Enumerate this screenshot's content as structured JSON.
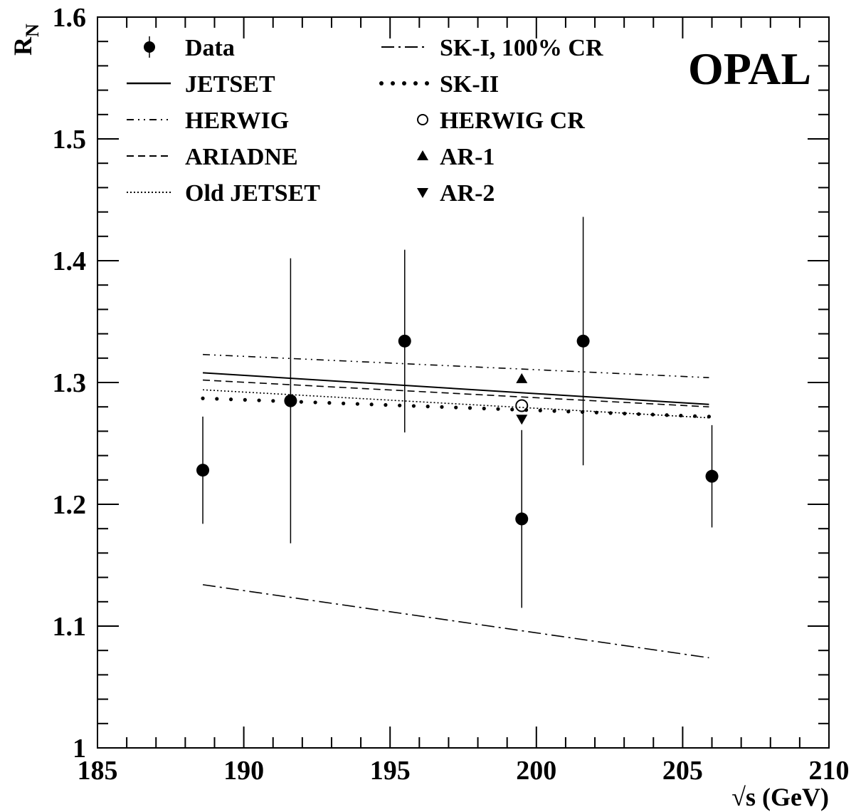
{
  "chart_data": {
    "type": "scatter",
    "label": "OPAL",
    "xlabel": "√s (GeV)",
    "ylabel": "R",
    "ylabel_sub": "N",
    "xlim": [
      185,
      210
    ],
    "ylim": [
      1.0,
      1.6
    ],
    "xticks": [
      185,
      190,
      195,
      200,
      205,
      210
    ],
    "yticks": [
      1,
      1.1,
      1.2,
      1.3,
      1.4,
      1.5,
      1.6
    ],
    "ytick_labels": [
      "1",
      "1.1",
      "1.2",
      "1.3",
      "1.4",
      "1.5",
      "1.6"
    ],
    "legend_position": "top-left",
    "data": {
      "name": "Data",
      "points": [
        {
          "x": 188.6,
          "y": 1.228,
          "err": 0.044
        },
        {
          "x": 191.6,
          "y": 1.285,
          "err": 0.117
        },
        {
          "x": 195.5,
          "y": 1.334,
          "err": 0.075
        },
        {
          "x": 199.5,
          "y": 1.188,
          "err": 0.073
        },
        {
          "x": 201.6,
          "y": 1.334,
          "err": 0.102
        },
        {
          "x": 206.0,
          "y": 1.223,
          "err": 0.042
        }
      ]
    },
    "series": [
      {
        "name": "JETSET",
        "style": "solid",
        "x": [
          188.6,
          205.9
        ],
        "y": [
          1.308,
          1.282
        ]
      },
      {
        "name": "HERWIG",
        "style": "dashdotdot",
        "x": [
          188.6,
          205.9
        ],
        "y": [
          1.323,
          1.304
        ]
      },
      {
        "name": "ARIADNE",
        "style": "dashed",
        "x": [
          188.6,
          205.9
        ],
        "y": [
          1.302,
          1.28
        ]
      },
      {
        "name": "Old JETSET",
        "style": "dotted",
        "x": [
          188.6,
          205.9
        ],
        "y": [
          1.294,
          1.271
        ]
      },
      {
        "name": "SK-I, 100% CR",
        "style": "dashdot",
        "x": [
          188.6,
          205.9
        ],
        "y": [
          1.134,
          1.074
        ]
      },
      {
        "name": "SK-II",
        "style": "bigdots",
        "x": [
          188.6,
          205.9
        ],
        "y": [
          1.287,
          1.272
        ]
      }
    ],
    "markers": [
      {
        "name": "HERWIG CR",
        "symbol": "open-circle",
        "x": 199.5,
        "y": 1.281
      },
      {
        "name": "AR-1",
        "symbol": "triangle-up",
        "x": 199.5,
        "y": 1.303
      },
      {
        "name": "AR-2",
        "symbol": "triangle-down",
        "x": 199.5,
        "y": 1.27
      }
    ],
    "legend": [
      {
        "label": "Data",
        "kind": "data"
      },
      {
        "label": "JETSET",
        "kind": "solid"
      },
      {
        "label": "HERWIG",
        "kind": "dashdotdot"
      },
      {
        "label": "ARIADNE",
        "kind": "dashed"
      },
      {
        "label": "Old JETSET",
        "kind": "dotted"
      },
      {
        "label": "SK-I, 100% CR",
        "kind": "dashdot"
      },
      {
        "label": "SK-II",
        "kind": "bigdots"
      },
      {
        "label": "HERWIG CR",
        "kind": "open-circle"
      },
      {
        "label": "AR-1",
        "kind": "triangle-up"
      },
      {
        "label": "AR-2",
        "kind": "triangle-down"
      }
    ]
  }
}
